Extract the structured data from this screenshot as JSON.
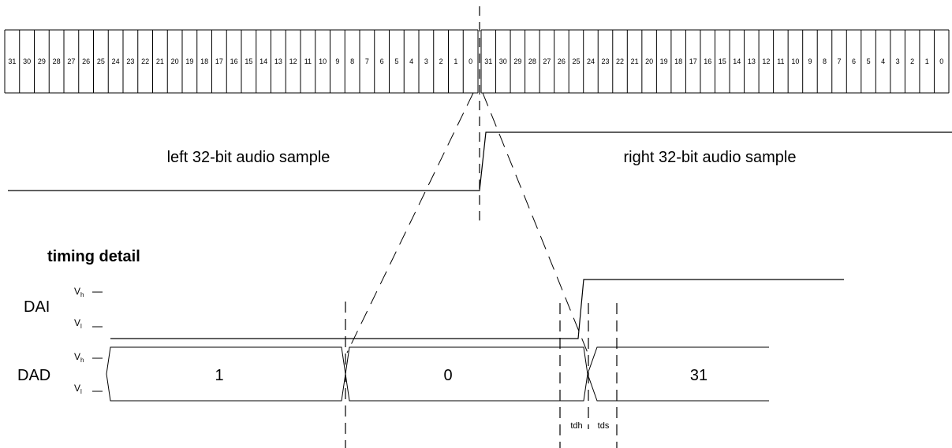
{
  "bits_left": [
    "31",
    "30",
    "29",
    "28",
    "27",
    "26",
    "25",
    "24",
    "23",
    "22",
    "21",
    "20",
    "19",
    "18",
    "17",
    "16",
    "15",
    "14",
    "13",
    "12",
    "11",
    "10",
    "9",
    "8",
    "7",
    "6",
    "5",
    "4",
    "3",
    "2",
    "1",
    "0"
  ],
  "bits_right": [
    "31",
    "30",
    "29",
    "28",
    "27",
    "26",
    "25",
    "24",
    "23",
    "22",
    "21",
    "20",
    "19",
    "18",
    "17",
    "16",
    "15",
    "14",
    "13",
    "12",
    "11",
    "10",
    "9",
    "8",
    "7",
    "6",
    "5",
    "4",
    "3",
    "2",
    "1",
    "0"
  ],
  "left_sample_label": "left 32-bit audio sample",
  "right_sample_label": "right 32-bit audio sample",
  "timing_title": "timing detail",
  "signals": {
    "dai": {
      "name": "DAI",
      "vh": "V",
      "vh_sub": "h",
      "vl": "V",
      "vl_sub": "l"
    },
    "dad": {
      "name": "DAD",
      "vh": "V",
      "vh_sub": "h",
      "vl": "V",
      "vl_sub": "l"
    }
  },
  "dad_values": [
    "1",
    "0",
    "31"
  ],
  "timing_params": {
    "tdh": "tdh",
    "tds": "tds"
  }
}
